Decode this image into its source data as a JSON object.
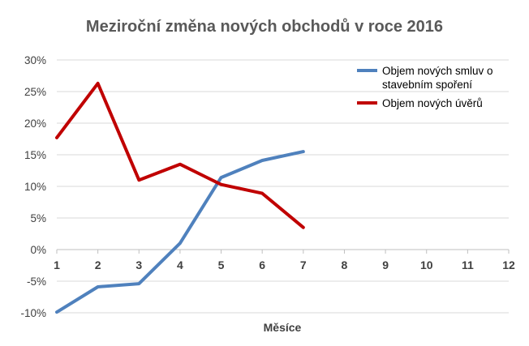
{
  "chart_data": {
    "type": "line",
    "title": "Meziroční změna nových obchodů v roce 2016",
    "xlabel": "Měsíce",
    "ylabel": "",
    "x": [
      1,
      2,
      3,
      4,
      5,
      6,
      7,
      8,
      9,
      10,
      11,
      12
    ],
    "x_tick_labels": [
      "1",
      "2",
      "3",
      "4",
      "5",
      "6",
      "7",
      "8",
      "9",
      "10",
      "11",
      "12"
    ],
    "ylim": [
      -0.1,
      0.3
    ],
    "y_ticks": [
      -0.1,
      -0.05,
      0,
      0.05,
      0.1,
      0.15,
      0.2,
      0.25,
      0.3
    ],
    "y_tick_labels": [
      "-10%",
      "-5%",
      "0%",
      "5%",
      "10%",
      "15%",
      "20%",
      "25%",
      "30%"
    ],
    "grid": true,
    "legend_position": "top-right",
    "series": [
      {
        "name": "Objem nových smluv o stavebním spoření",
        "legend_lines": [
          "Objem nových smluv o",
          "stavebním spoření"
        ],
        "color": "#4F81BD",
        "x": [
          1,
          2,
          3,
          4,
          5,
          6,
          7
        ],
        "values": [
          -0.099,
          -0.059,
          -0.054,
          0.01,
          0.114,
          0.141,
          0.155
        ]
      },
      {
        "name": "Objem nových úvěrů",
        "legend_lines": [
          "Objem nových úvěrů"
        ],
        "color": "#C00000",
        "x": [
          1,
          2,
          3,
          4,
          5,
          6,
          7
        ],
        "values": [
          0.177,
          0.263,
          0.11,
          0.135,
          0.103,
          0.089,
          0.035
        ]
      }
    ]
  }
}
